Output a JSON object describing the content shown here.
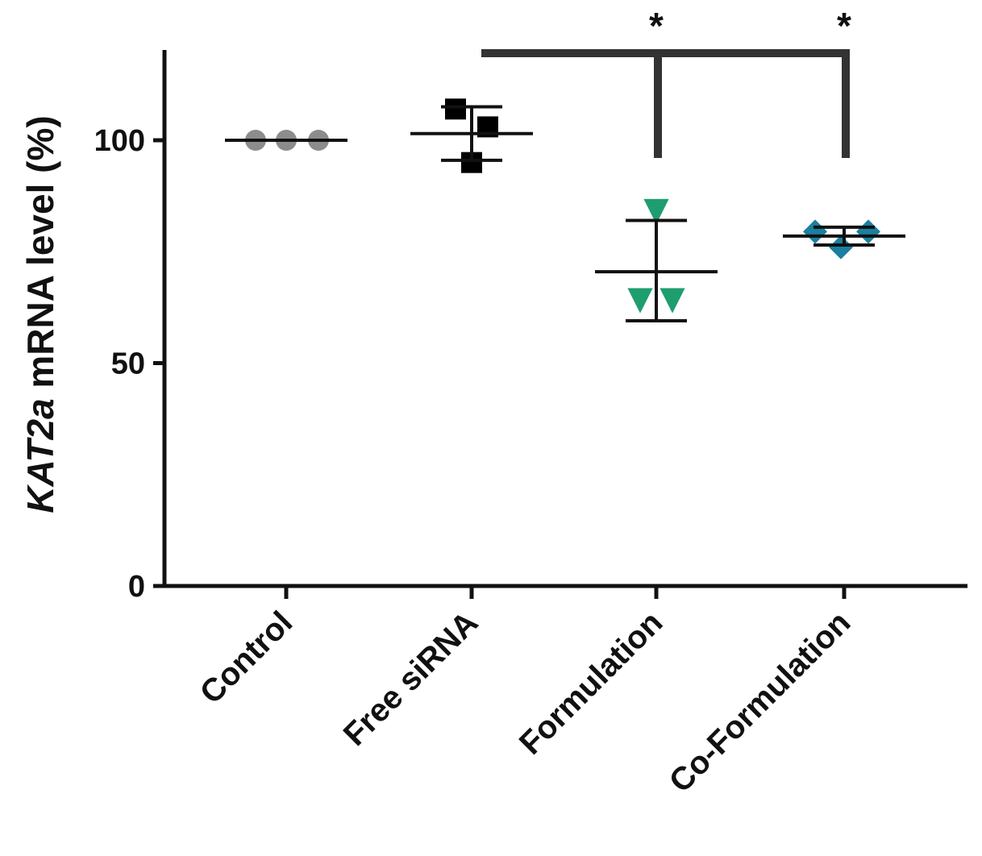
{
  "chart_data": {
    "type": "scatter",
    "ylabel_italic": "KAT2a",
    "ylabel_rest": " mRNA level (%)",
    "ylim": [
      0,
      120
    ],
    "yticks": [
      {
        "value": 0,
        "label": "0"
      },
      {
        "value": 50,
        "label": "50"
      },
      {
        "value": 100,
        "label": "100"
      }
    ],
    "grid": false,
    "categories": [
      "Control",
      "Free siRNA",
      "Formulation",
      "Co-Formulation"
    ],
    "groups": [
      {
        "category": "Control",
        "marker": "circle",
        "color": "#8c8c8c",
        "points": [
          100,
          100,
          100
        ],
        "mean": 100,
        "sd_upper": 100,
        "sd_lower": 100
      },
      {
        "category": "Free siRNA",
        "marker": "square",
        "color": "#000000",
        "points": [
          107,
          103,
          95
        ],
        "mean": 101.5,
        "sd_upper": 107.5,
        "sd_lower": 95.5
      },
      {
        "category": "Formulation",
        "marker": "triangle-down",
        "color": "#1e9e6e",
        "points": [
          84,
          64,
          64
        ],
        "mean": 70.5,
        "sd_upper": 82,
        "sd_lower": 59.5
      },
      {
        "category": "Co-Formulation",
        "marker": "diamond",
        "color": "#1a7fa0",
        "points": [
          79.5,
          79.5,
          76
        ],
        "mean": 78.5,
        "sd_upper": 80.5,
        "sd_lower": 76.5
      }
    ],
    "significance": [
      {
        "from": "Free siRNA",
        "to": "Formulation",
        "label": "*"
      },
      {
        "from": "Free siRNA",
        "to": "Co-Formulation",
        "label": "*"
      }
    ]
  }
}
